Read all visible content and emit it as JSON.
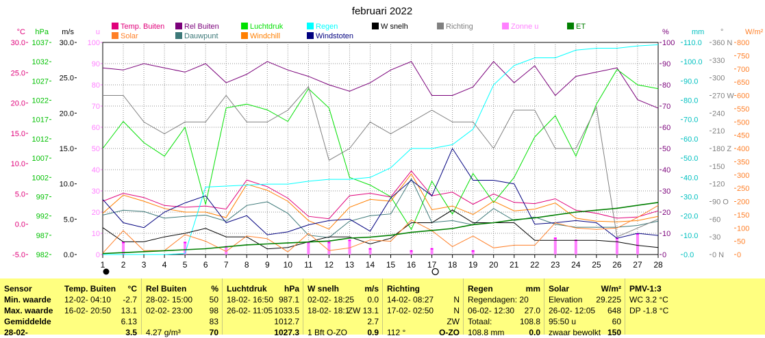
{
  "title": "februari 2022",
  "legend": [
    {
      "label": "Temp. Buiten",
      "color": "#e0007a"
    },
    {
      "label": "Solar",
      "color": "#ff7f27"
    },
    {
      "label": "Rel Buiten",
      "color": "#7a007a"
    },
    {
      "label": "Dauwpunt",
      "color": "#3c7878"
    },
    {
      "label": "Luchtdruk",
      "color": "#00e000"
    },
    {
      "label": "Windchill",
      "color": "#ff7f00"
    },
    {
      "label": "Regen",
      "color": "#00ffff"
    },
    {
      "label": "Windstoten",
      "color": "#00007f"
    },
    {
      "label": "W snelh",
      "color": "#000000"
    },
    {
      "label": "Richting",
      "color": "#808080"
    },
    {
      "label": "Zonne u",
      "color": "#ff80ff"
    },
    {
      "label": "ET",
      "color": "#007f00"
    }
  ],
  "axes_left": [
    {
      "unit": "°C",
      "color": "#e0007a",
      "ticks": [
        "30.0",
        "25.0",
        "20.0",
        "15.0",
        "10.0",
        "5.0",
        "0.0",
        "-5.0"
      ]
    },
    {
      "unit": "hPa",
      "color": "#00c000",
      "ticks": [
        "1037",
        "1032",
        "1027",
        "1022",
        "1017",
        "1012",
        "1007",
        "1002",
        "997",
        "992",
        "987",
        "982"
      ]
    },
    {
      "unit": "m/s",
      "color": "#000000",
      "ticks": [
        "30.0",
        "25.0",
        "20.0",
        "15.0",
        "10.0",
        "5.0",
        "0.0"
      ]
    },
    {
      "unit": "u",
      "color": "#ff80ff",
      "ticks": [
        "100",
        "90",
        "80",
        "70",
        "60",
        "50",
        "40",
        "30",
        "20",
        "10",
        "0"
      ]
    }
  ],
  "axes_right": [
    {
      "unit": "%",
      "color": "#7a007a",
      "ticks": [
        "100",
        "90",
        "80",
        "70",
        "60",
        "50",
        "40",
        "30",
        "20",
        "10",
        "0"
      ]
    },
    {
      "unit": "mm",
      "color": "#00c0c0",
      "ticks": [
        "110.0",
        "100.0",
        "90.0",
        "80.0",
        "70.0",
        "60.0",
        "50.0",
        "40.0",
        "30.0",
        "20.0",
        "10.0",
        "0.0"
      ]
    },
    {
      "unit": "°",
      "color": "#808080",
      "ticks": [
        "360 N",
        "330",
        "300",
        "270 W",
        "240",
        "210",
        "180 Z",
        "150",
        "120",
        "90 O",
        "60",
        "30",
        "0 N"
      ]
    },
    {
      "unit": "W/m²",
      "color": "#ff7f27",
      "ticks": [
        "800",
        "750",
        "700",
        "650",
        "600",
        "550",
        "500",
        "450",
        "400",
        "350",
        "300",
        "250",
        "200",
        "150",
        "100",
        "50",
        "0"
      ]
    }
  ],
  "chart_data": {
    "type": "line",
    "title": "februari 2022",
    "x": [
      1,
      2,
      3,
      4,
      5,
      6,
      7,
      8,
      9,
      10,
      11,
      12,
      13,
      14,
      15,
      16,
      17,
      18,
      19,
      20,
      21,
      22,
      23,
      24,
      25,
      26,
      27,
      28
    ],
    "xlim": [
      1,
      28
    ],
    "moon_markers": [
      {
        "day": 1,
        "phase": "full"
      },
      {
        "day": 17,
        "phase": "new"
      }
    ],
    "series": [
      {
        "name": "Temp. Buiten",
        "unit": "°C",
        "axis_range": [
          -5,
          30
        ],
        "color": "#e0007a",
        "width": 1,
        "values": [
          3.8,
          5.1,
          4.4,
          3.1,
          2.8,
          3.0,
          2.5,
          7.3,
          6.2,
          4.3,
          1.3,
          0.9,
          4.7,
          5.1,
          4.5,
          8.8,
          4.7,
          5.3,
          3.3,
          5.0,
          3.6,
          3.4,
          4.2,
          2.3,
          1.8,
          1.0,
          1.2,
          2.2
        ]
      },
      {
        "name": "Rel Buiten",
        "unit": "%",
        "axis_range": [
          0,
          100
        ],
        "color": "#7a007a",
        "width": 1,
        "values": [
          88,
          87,
          90,
          88,
          86,
          90,
          81,
          85,
          91,
          87,
          84,
          80,
          77,
          81,
          87,
          91,
          75,
          75,
          79,
          91,
          81,
          89,
          75,
          84,
          86,
          88,
          73,
          69
        ]
      },
      {
        "name": "Dauwpunt",
        "unit": "°C",
        "axis_range": [
          -5,
          30
        ],
        "color": "#3c7878",
        "width": 1,
        "values": [
          1.5,
          2.3,
          2.1,
          1.0,
          1.3,
          1.5,
          0.5,
          3.1,
          3.7,
          1.8,
          -1.8,
          -2.2,
          0.5,
          1.4,
          1.7,
          7.5,
          0.3,
          0.6,
          -0.1,
          2.6,
          0.6,
          1.2,
          0.0,
          -0.5,
          -0.5,
          -0.5,
          -0.2,
          0.5
        ]
      },
      {
        "name": "Luchtdruk",
        "unit": "hPa",
        "axis_range": [
          982,
          1037
        ],
        "color": "#00e000",
        "width": 1,
        "values": [
          1009.5,
          1016.5,
          1011,
          1007.5,
          1015,
          995,
          1020,
          1021,
          1019.5,
          1016.5,
          1025,
          1020,
          1002,
          1000,
          997,
          988.5,
          1001,
          992.5,
          1003,
          995.5,
          1002,
          1012.5,
          1018,
          1007.5,
          1021,
          1030,
          1026,
          1025
        ]
      },
      {
        "name": "Windchill",
        "unit": "°C",
        "axis_range": [
          -5,
          30
        ],
        "color": "#ff7f00",
        "width": 1,
        "values": [
          1.8,
          4.8,
          3.8,
          2.6,
          2.0,
          2.0,
          1.1,
          6.6,
          5.6,
          3.8,
          0.6,
          -0.8,
          2.8,
          4.1,
          3.8,
          8.3,
          2.4,
          3.0,
          1.6,
          3.8,
          2.2,
          2.5,
          3.5,
          1.0,
          0.5,
          0.4,
          0.6,
          1.3
        ]
      },
      {
        "name": "Regen",
        "unit": "mm",
        "axis_range": [
          0,
          110
        ],
        "color": "#00ffff",
        "width": 1,
        "values": [
          0,
          0,
          0,
          0,
          0.5,
          35,
          35.5,
          36,
          36.5,
          36.5,
          38,
          39,
          39,
          40,
          45,
          55,
          55,
          57,
          65,
          88,
          98,
          102,
          102,
          106,
          107,
          107,
          108.2,
          108.8
        ]
      },
      {
        "name": "Windstoten",
        "unit": "m/s",
        "axis_range": [
          0,
          30
        ],
        "color": "#00007f",
        "width": 1,
        "values": [
          7.8,
          4.5,
          3.8,
          6.0,
          7.3,
          8.3,
          4.5,
          5.5,
          2.8,
          3.2,
          4.2,
          4.8,
          5.0,
          3.3,
          8.0,
          10.5,
          8.3,
          15.0,
          10.5,
          10.5,
          10.0,
          4.3,
          4.5,
          4.8,
          4.5,
          2.3,
          3.0,
          2.7
        ]
      },
      {
        "name": "W snelh",
        "unit": "m/s",
        "axis_range": [
          0,
          30
        ],
        "color": "#000000",
        "width": 1,
        "values": [
          3.8,
          1.8,
          1.8,
          2.5,
          3.0,
          3.7,
          2.5,
          2.5,
          0.8,
          1.0,
          1.8,
          2.5,
          2.5,
          1.5,
          2.3,
          4.5,
          4.5,
          6.3,
          4.5,
          4.5,
          4.5,
          2.0,
          2.0,
          2.0,
          2.0,
          1.8,
          1.3,
          1.0
        ]
      },
      {
        "name": "Richting",
        "unit": "°",
        "axis_range": [
          0,
          360
        ],
        "color": "#808080",
        "width": 1,
        "values": [
          270,
          270,
          225,
          205,
          225,
          225,
          270,
          225,
          225,
          245,
          285,
          160,
          180,
          225,
          205,
          225,
          245,
          225,
          225,
          180,
          245,
          245,
          180,
          180,
          250,
          30,
          45,
          60
        ]
      },
      {
        "name": "Solar",
        "unit": "W/m²",
        "axis_range": [
          0,
          800
        ],
        "color": "#ff7f27",
        "width": 1,
        "values": [
          5,
          90,
          15,
          15,
          75,
          50,
          12,
          70,
          60,
          10,
          80,
          15,
          25,
          55,
          50,
          130,
          90,
          30,
          70,
          25,
          35,
          35,
          120,
          100,
          95,
          100,
          140,
          185
        ]
      },
      {
        "name": "ET",
        "unit": "mm",
        "axis_range": [
          0,
          110
        ],
        "color": "#007f00",
        "width": 1.6,
        "values": [
          0.5,
          1,
          1.5,
          2,
          2.5,
          3,
          4,
          5,
          5.5,
          6,
          6.5,
          7,
          8.5,
          9,
          10,
          11.5,
          12.5,
          13.5,
          15.5,
          16.5,
          18,
          19,
          20.5,
          22,
          23,
          24,
          25.5,
          27
        ]
      }
    ],
    "bars": {
      "name": "Zonne u",
      "unit": "u",
      "axis_range": [
        0,
        100
      ],
      "color": "#ff80ff",
      "accent": "#ff00ff",
      "values": [
        0,
        6,
        0,
        0,
        6,
        0,
        4,
        0,
        0,
        0,
        6,
        6,
        7,
        3,
        0,
        2,
        3,
        0,
        2,
        0,
        0,
        0,
        8,
        7,
        0,
        8,
        10,
        0
      ]
    }
  },
  "table": {
    "row_labels": [
      "Sensor",
      "Min. waarde",
      "Max. waarde",
      "Gemiddelde",
      "28-02-"
    ],
    "columns": [
      {
        "header": "Temp. Buiten",
        "unit": "°C",
        "rows": [
          [
            "12-02-  04:10",
            "-2.7"
          ],
          [
            "16-02-  20:50",
            "13.1"
          ],
          [
            "",
            "6.13"
          ],
          [
            "",
            "3.5"
          ]
        ]
      },
      {
        "header": "Rel Buiten",
        "unit": "%",
        "rows": [
          [
            "28-02-  15:00",
            "50"
          ],
          [
            "02-02-  23:00",
            "98"
          ],
          [
            "",
            "83"
          ],
          [
            "4.27 g/m³",
            "70"
          ]
        ]
      },
      {
        "header": "Luchtdruk",
        "unit": "hPa",
        "rows": [
          [
            "18-02-  16:50",
            "987.1"
          ],
          [
            "26-02-  11:05",
            "1033.5"
          ],
          [
            "",
            "1012.7"
          ],
          [
            "",
            "1027.3"
          ]
        ]
      },
      {
        "header": "W snelh",
        "unit": "m/s",
        "rows": [
          [
            "02-02-  18:25",
            "0.0"
          ],
          [
            "18-02-  18:1",
            "ZW 13.1"
          ],
          [
            "",
            "2.7"
          ],
          [
            "1 Bft  O-ZO",
            "0.9"
          ]
        ]
      },
      {
        "header": "Richting",
        "unit": "",
        "rows": [
          [
            "14-02-  08:27",
            "N"
          ],
          [
            "17-02-  02:50",
            "N"
          ],
          [
            "",
            "ZW"
          ],
          [
            "112 °",
            "O-ZO"
          ]
        ]
      },
      {
        "header": "Regen",
        "unit": "mm",
        "rows": [
          [
            "Regendagen: 20",
            ""
          ],
          [
            "06-02-  12:30",
            "27.0"
          ],
          [
            "Totaal:",
            "108.8"
          ],
          [
            "108.8 mm",
            "0.0"
          ]
        ]
      },
      {
        "header": "Solar",
        "unit": "W/m²",
        "rows": [
          [
            "Elevation",
            "29.225"
          ],
          [
            "26-02-  12:05",
            "648"
          ],
          [
            "95:50 u",
            "60"
          ],
          [
            "zwaar bewolkt",
            "150"
          ]
        ]
      },
      {
        "header": "PMV-1:3",
        "unit": "",
        "rows": [
          [
            "WC 3.2 °C",
            ""
          ],
          [
            "DP -1.8 °C",
            ""
          ],
          [
            "",
            ""
          ],
          [
            "",
            ""
          ]
        ]
      }
    ]
  }
}
